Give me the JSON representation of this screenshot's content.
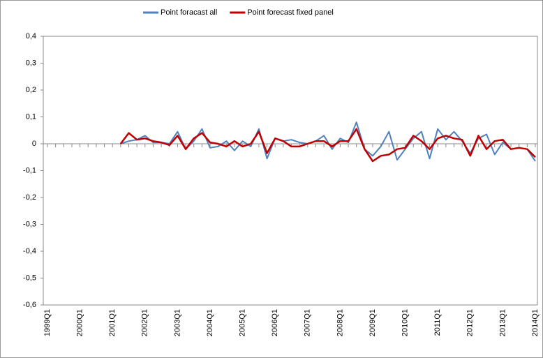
{
  "chart_data": {
    "type": "line",
    "categories": [
      "1999Q1",
      null,
      null,
      null,
      "2000Q1",
      null,
      null,
      null,
      "2001Q1",
      null,
      null,
      null,
      "2002Q1",
      null,
      null,
      null,
      "2003Q1",
      null,
      null,
      null,
      "2004Q1",
      null,
      null,
      null,
      "2005Q1",
      null,
      null,
      null,
      "2006Q1",
      null,
      null,
      null,
      "2007Q1",
      null,
      null,
      null,
      "2008Q1",
      null,
      null,
      null,
      "2009Q1",
      null,
      null,
      null,
      "2010Q1",
      null,
      null,
      null,
      "2011Q1",
      null,
      null,
      null,
      "2012Q1",
      null,
      null,
      null,
      "2013Q1",
      null,
      null,
      null,
      "2014Q1"
    ],
    "series": [
      {
        "name": "Point foracast all",
        "color": "#4f81bd",
        "values": [
          null,
          null,
          null,
          null,
          null,
          null,
          null,
          null,
          null,
          0,
          0.01,
          0.015,
          0.03,
          0.005,
          0.005,
          0,
          0.045,
          -0.02,
          0.01,
          0.055,
          -0.015,
          -0.01,
          0.01,
          -0.025,
          0.01,
          -0.01,
          0.055,
          -0.055,
          0.02,
          0.01,
          0.015,
          0.005,
          0,
          0.01,
          0.03,
          -0.02,
          0.02,
          0.005,
          0.08,
          -0.02,
          -0.045,
          -0.01,
          0.045,
          -0.06,
          -0.02,
          0.02,
          0.045,
          -0.055,
          0.055,
          0.015,
          0.045,
          0.01,
          -0.035,
          0.02,
          0.035,
          -0.04,
          0.005,
          -0.02,
          -0.015,
          -0.02,
          -0.065
        ]
      },
      {
        "name": "Point forecast fixed panel",
        "color": "#c00000",
        "values": [
          null,
          null,
          null,
          null,
          null,
          null,
          null,
          null,
          null,
          0,
          0.04,
          0.015,
          0.02,
          0.01,
          0.005,
          -0.005,
          0.03,
          -0.02,
          0.02,
          0.04,
          0.005,
          0,
          -0.01,
          0.01,
          -0.01,
          0,
          0.045,
          -0.035,
          0.02,
          0.01,
          -0.01,
          -0.01,
          0,
          0.01,
          0.01,
          -0.01,
          0.01,
          0.01,
          0.055,
          -0.02,
          -0.065,
          -0.045,
          -0.04,
          -0.02,
          -0.015,
          0.03,
          0.01,
          -0.02,
          0.02,
          0.03,
          0.02,
          0.015,
          -0.045,
          0.03,
          -0.02,
          0.01,
          0.015,
          -0.02,
          -0.015,
          -0.02,
          -0.05
        ]
      }
    ],
    "ylim": [
      -0.6,
      0.4
    ],
    "yticks": [
      {
        "value": 0.4,
        "label": "0,4"
      },
      {
        "value": 0.3,
        "label": "0,3"
      },
      {
        "value": 0.2,
        "label": "0,2"
      },
      {
        "value": 0.1,
        "label": "0,1"
      },
      0,
      {
        "value": -0.1,
        "label": "-0,1"
      },
      {
        "value": -0.2,
        "label": "-0,2"
      },
      {
        "value": -0.3,
        "label": "-0,3"
      },
      {
        "value": -0.4,
        "label": "-0,4"
      },
      {
        "value": -0.5,
        "label": "-0,5"
      },
      {
        "value": -0.6,
        "label": "-0,6"
      }
    ],
    "grid": false,
    "legend": "top"
  }
}
